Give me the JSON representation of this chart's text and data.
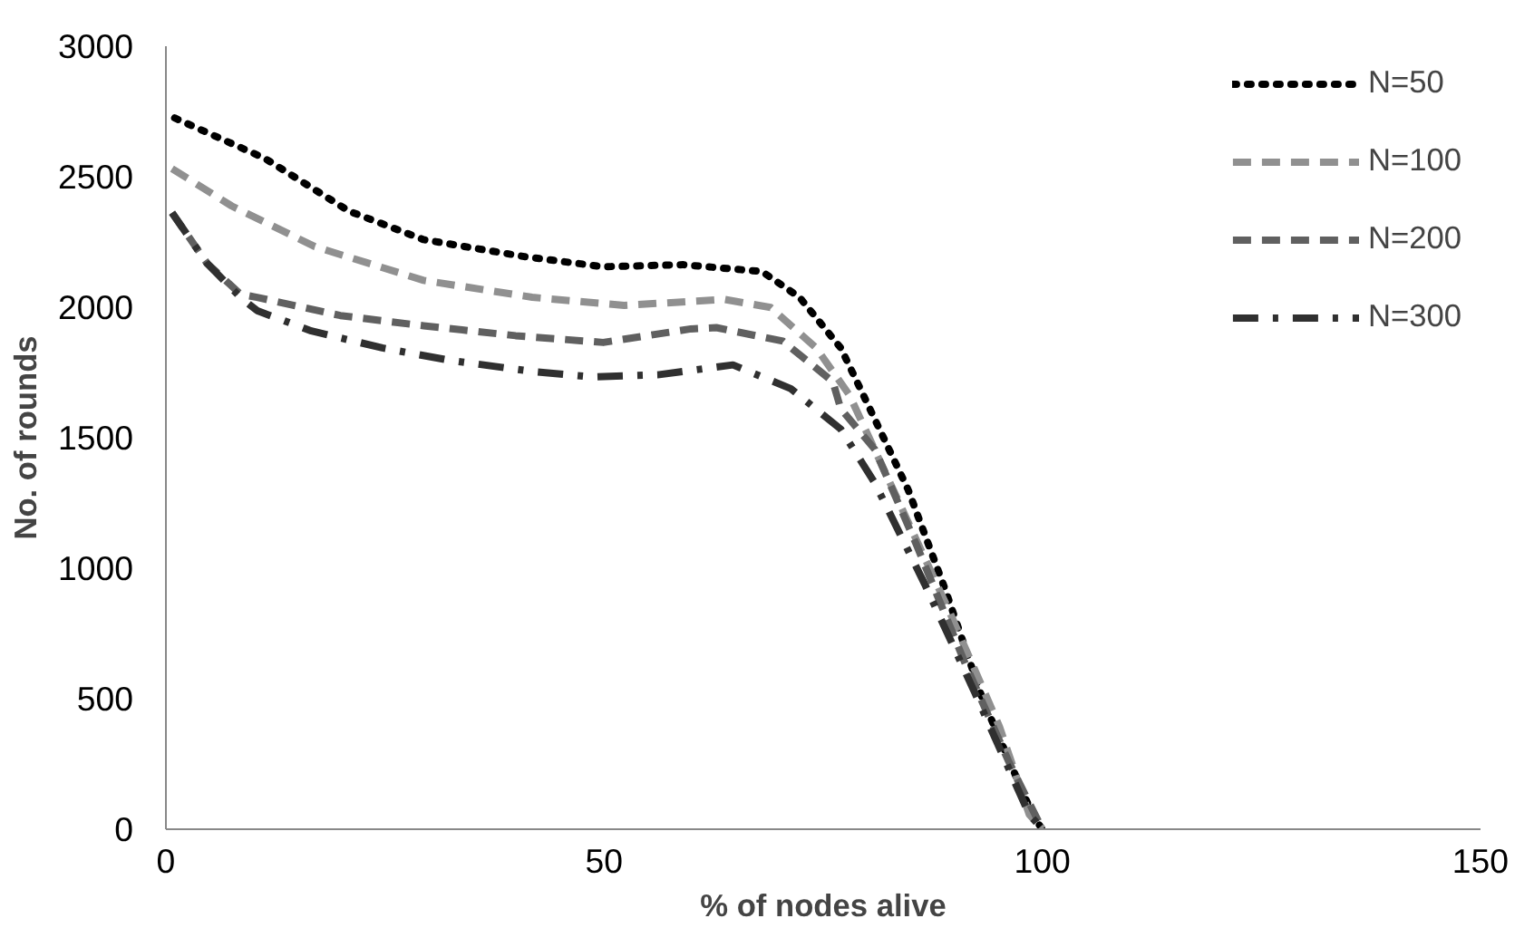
{
  "chart_data": {
    "type": "line",
    "xlabel": "% of nodes alive",
    "ylabel": "No. of rounds",
    "xlim": [
      0,
      150
    ],
    "ylim": [
      0,
      3000
    ],
    "xticks": [
      0,
      50,
      100,
      150
    ],
    "yticks": [
      0,
      500,
      1000,
      1500,
      2000,
      2500,
      3000
    ],
    "grid": false,
    "legend": "top right",
    "marker": "none",
    "series": [
      {
        "name": "N=50",
        "color": "#000000",
        "line_style": "dotted",
        "x": [
          1,
          11.3,
          20.9,
          29.4,
          40.9,
          49.9,
          59,
          68,
          72.3,
          77,
          79.4,
          84.7,
          89,
          93.2,
          99,
          100
        ],
        "values": [
          2725,
          2570,
          2368,
          2259,
          2194,
          2155,
          2163,
          2137,
          2038,
          1844,
          1676,
          1300,
          911,
          497,
          47,
          0
        ]
      },
      {
        "name": "N=100",
        "color": "#909090",
        "line_style": "dashed",
        "x": [
          0.7,
          7.5,
          17,
          29.4,
          41.8,
          52.3,
          63.7,
          69,
          74.2,
          78,
          83.7,
          89.4,
          95.1,
          98.5,
          100
        ],
        "values": [
          2531,
          2388,
          2232,
          2103,
          2038,
          2007,
          2030,
          1999,
          1844,
          1663,
          1249,
          834,
          394,
          57,
          0
        ]
      },
      {
        "name": "N=200",
        "color": "#606060",
        "line_style": "dashed",
        "x": [
          0.7,
          4.7,
          8.5,
          10.4,
          19.9,
          29.4,
          39.9,
          49.9,
          59.9,
          62.8,
          70.4,
          76.1,
          77,
          80.9,
          85.6,
          91.3,
          96.1,
          100
        ],
        "values": [
          2362,
          2168,
          2050,
          2038,
          1968,
          1929,
          1891,
          1865,
          1917,
          1922,
          1870,
          1715,
          1611,
          1455,
          1093,
          627,
          264,
          0
        ]
      },
      {
        "name": "N=300",
        "color": "#303030",
        "line_style": "dashdot",
        "x": [
          0.7,
          4.7,
          8.5,
          10.4,
          16.6,
          24.7,
          32.3,
          41.8,
          48.5,
          56.1,
          64.7,
          71.3,
          77,
          80.9,
          86.6,
          92.3,
          98.5,
          100
        ],
        "values": [
          2362,
          2168,
          2038,
          1987,
          1909,
          1844,
          1797,
          1754,
          1733,
          1741,
          1779,
          1688,
          1533,
          1326,
          938,
          523,
          57,
          0
        ]
      }
    ]
  }
}
